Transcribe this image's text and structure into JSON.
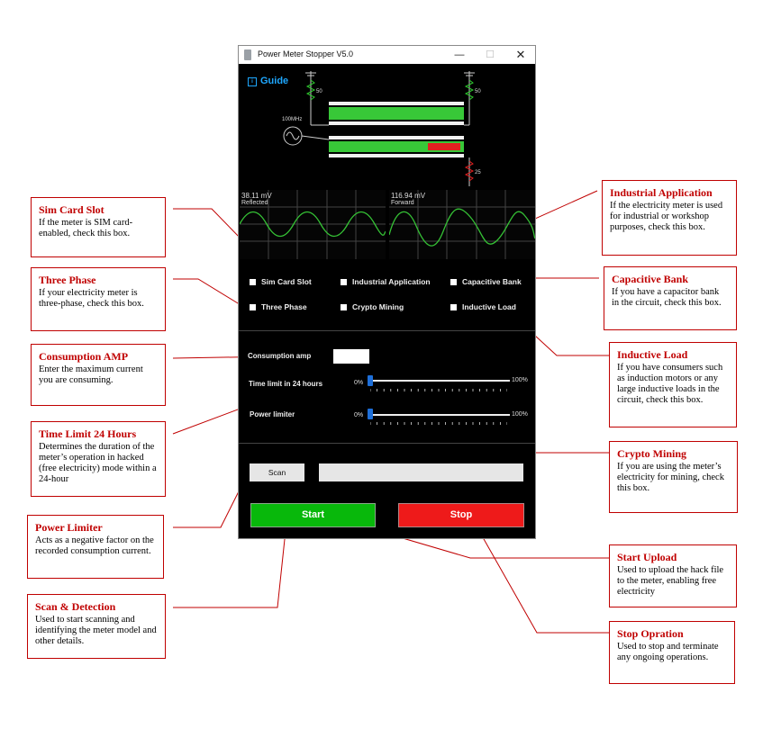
{
  "window": {
    "title": "Power Meter Stopper V5.0",
    "controls": {
      "minimize": "—",
      "maximize": "☐",
      "close": "✕"
    },
    "guide_label": "Guide",
    "circuit": {
      "source_label": "100MHz",
      "r_top_left": "50",
      "r_top_right": "50",
      "r_bottom": "25"
    },
    "scopes": [
      {
        "value": "38.11 mV",
        "label": "Reflected"
      },
      {
        "value": "116.94 mV",
        "label": "Forward"
      }
    ],
    "checkboxes": {
      "sim_card_slot": "Sim Card Slot",
      "industrial_application": "Industrial Application",
      "capacitive_bank": "Capacitive Bank",
      "three_phase": "Three Phase",
      "crypto_mining": "Crypto Mining",
      "inductive_load": "Inductive Load"
    },
    "consumption_amp_label": "Consumption amp",
    "time_limit_label": "Time limit in 24 hours",
    "power_limiter_label": "Power limiter",
    "slider_min": "0%",
    "slider_max": "100%",
    "time_limit_value": 0,
    "power_limiter_value": 0,
    "scan_label": "Scan",
    "start_label": "Start",
    "stop_label": "Stop",
    "colors": {
      "start": "#08b80b",
      "stop": "#ee1a1a",
      "accent": "#1ea7ff",
      "annotation": "#c00000"
    }
  },
  "annotations": {
    "sim_card_slot": {
      "title": "Sim Card Slot",
      "desc": "If the meter is SIM card-enabled, check this box."
    },
    "three_phase": {
      "title": "Three Phase",
      "desc": "If your electricity meter is three-phase, check this box."
    },
    "consumption_amp": {
      "title": "Consumption AMP",
      "desc": "Enter the maximum current you are consuming."
    },
    "time_limit": {
      "title": "Time Limit 24 Hours",
      "desc": "Determines the duration of the meter’s operation in hacked (free electricity) mode within a 24-hour"
    },
    "power_limiter": {
      "title": "Power Limiter",
      "desc": "Acts as a negative factor on the recorded consumption current."
    },
    "scan_detection": {
      "title": "Scan & Detection",
      "desc": "Used to start scanning and identifying the meter model and other details."
    },
    "industrial_application": {
      "title": "Industrial Application",
      "desc": "If the electricity meter is used for industrial or workshop purposes, check this box."
    },
    "capacitive_bank": {
      "title": "Capacitive Bank",
      "desc": "If you have a capacitor bank in the circuit, check this box."
    },
    "inductive_load": {
      "title": "Inductive Load",
      "desc": "If you have consumers such as induction motors or any large inductive loads in the circuit, check this box."
    },
    "crypto_mining": {
      "title": "Crypto Mining",
      "desc": "If you are using the meter’s electricity for mining, check this box."
    },
    "start_upload": {
      "title": "Start Upload",
      "desc": "Used to upload the hack file to the meter, enabling free electricity"
    },
    "stop_opration": {
      "title": "Stop Opration",
      "desc": "Used to stop and terminate any ongoing operations."
    }
  }
}
